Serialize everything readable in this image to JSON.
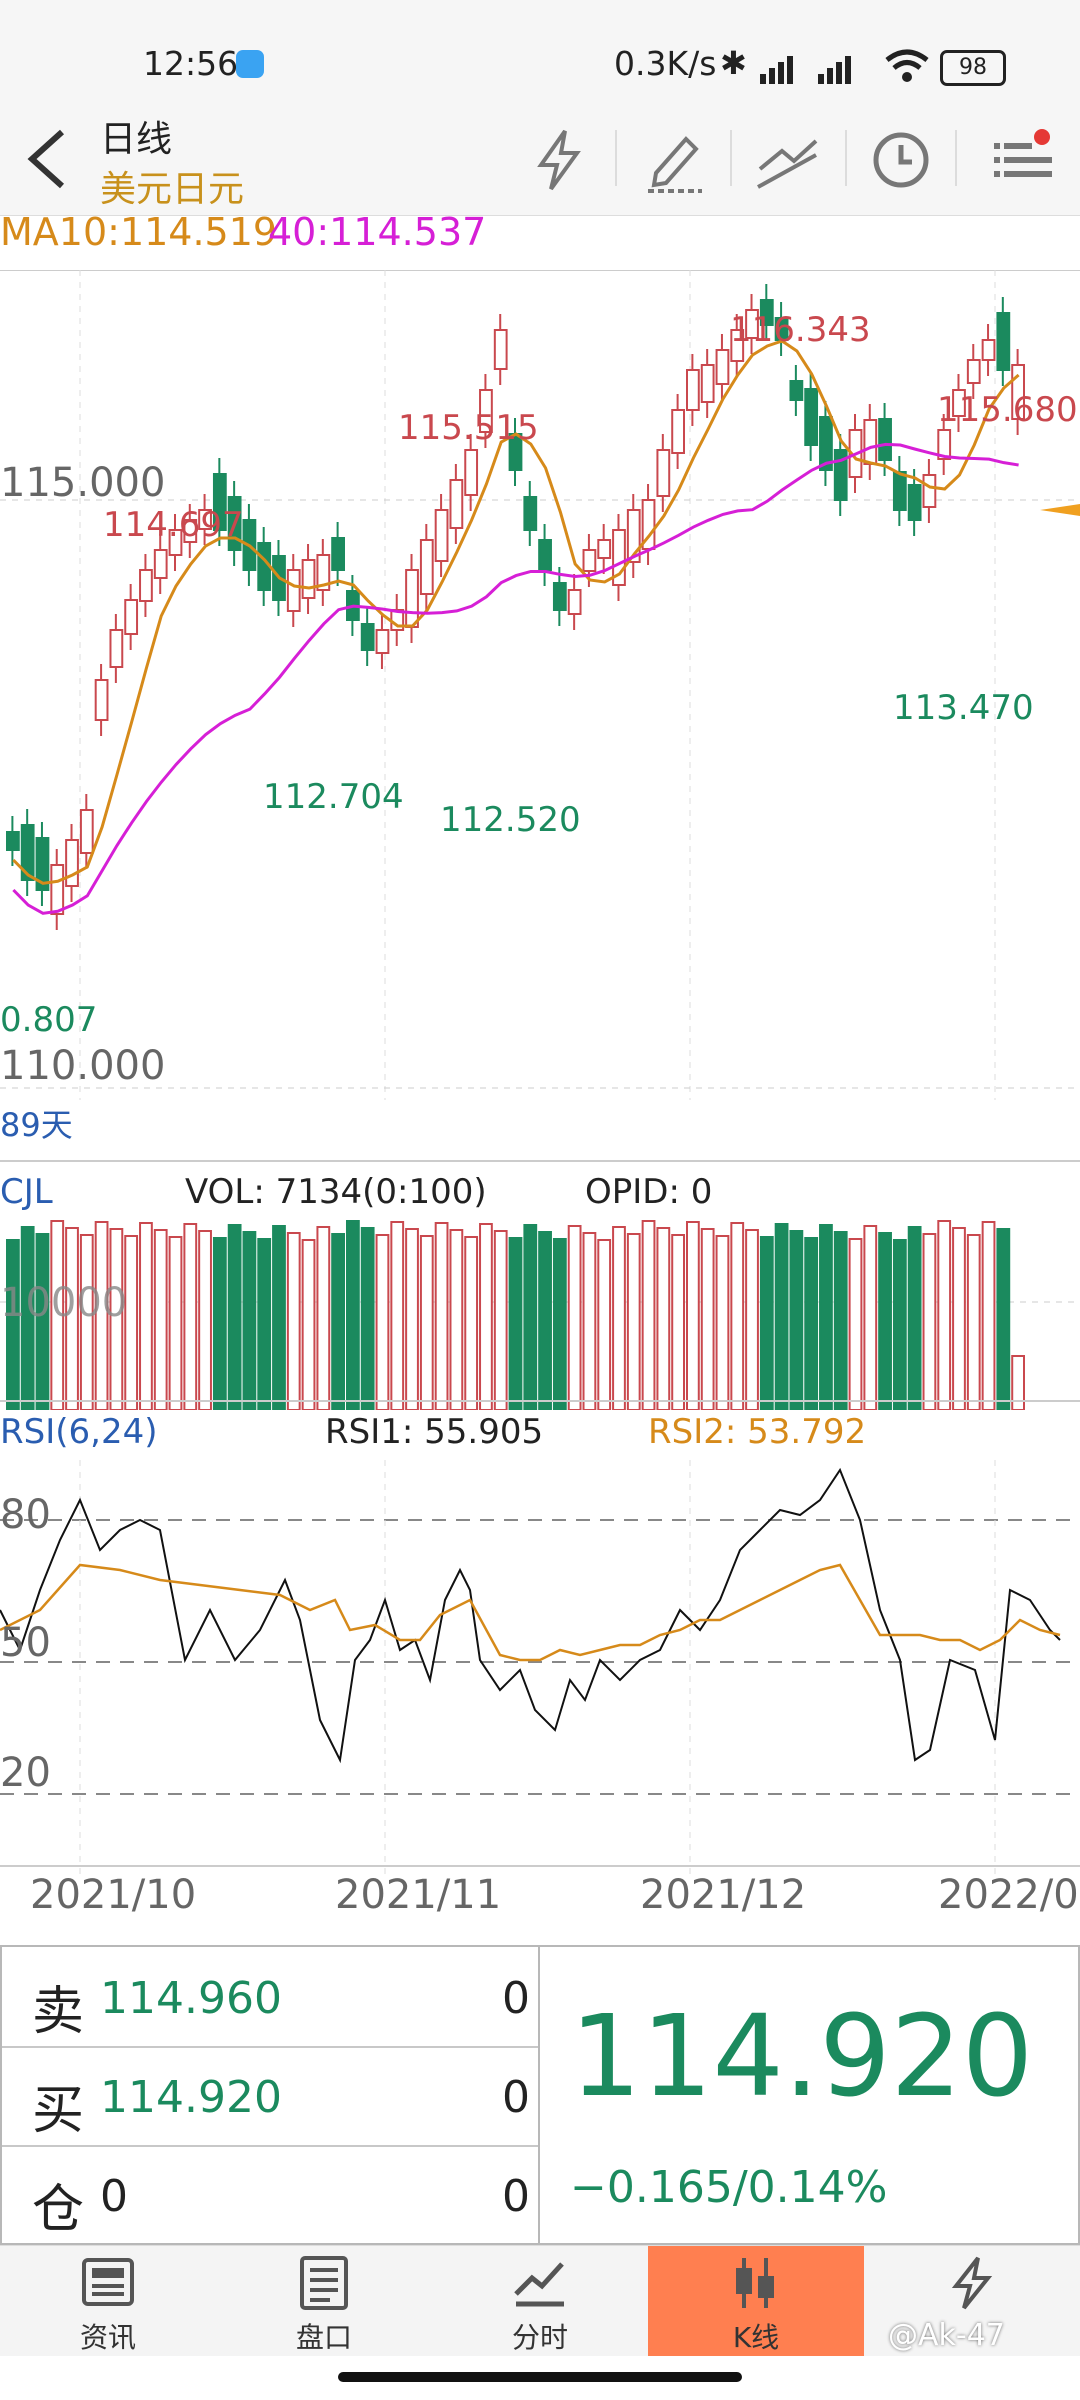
{
  "status_bar": {
    "time": "12:56",
    "net_speed": "0.3K/s",
    "battery": "98"
  },
  "header": {
    "title": "日线",
    "subtitle": "美元日元",
    "tools": [
      "flash-icon",
      "pen-icon",
      "trend-icon",
      "clock-icon",
      "menu-icon"
    ]
  },
  "ma_line": {
    "ma10": "MA10:114.519",
    "ma40": "40:114.537"
  },
  "price_chart": {
    "axis_top": "115.000",
    "axis_bottom": "110.000",
    "period_label": "89天",
    "annotations": [
      {
        "text": "114.697",
        "kind": "high"
      },
      {
        "text": "115.515",
        "kind": "high"
      },
      {
        "text": "116.343",
        "kind": "high"
      },
      {
        "text": "115.680",
        "kind": "high"
      },
      {
        "text": "112.704",
        "kind": "low"
      },
      {
        "text": "112.520",
        "kind": "low"
      },
      {
        "text": "113.470",
        "kind": "low"
      },
      {
        "text": "0.807",
        "kind": "low"
      }
    ]
  },
  "volume": {
    "name": "CJL",
    "vol_text": "VOL: 7134(0:100)",
    "opid_text": "OPID: 0",
    "axis_label": "10000"
  },
  "rsi": {
    "name": "RSI(6,24)",
    "rsi1_text": "RSI1: 55.905",
    "rsi2_text": "RSI2: 53.792",
    "levels": [
      "80",
      "50",
      "20"
    ]
  },
  "x_axis": {
    "dates": [
      "2021/10",
      "2021/11",
      "2021/12",
      "2022/0"
    ]
  },
  "order_book": {
    "sell_label": "卖",
    "sell_price": "114.960",
    "sell_qty": "0",
    "buy_label": "买",
    "buy_price": "114.920",
    "buy_qty": "0",
    "pos_label": "仓",
    "pos_value": "0",
    "pos_qty": "0",
    "last_price": "114.920",
    "change": "−0.165/0.14%"
  },
  "nav": {
    "items": [
      {
        "label": "资讯",
        "icon": "news-icon"
      },
      {
        "label": "盘口",
        "icon": "orderbook-icon"
      },
      {
        "label": "分时",
        "icon": "timeshare-icon"
      },
      {
        "label": "K线",
        "icon": "candlestick-icon"
      },
      {
        "label": "",
        "icon": "flash-icon"
      }
    ]
  },
  "watermark": "@Ak-47",
  "colors": {
    "up": "#c9484e",
    "down": "#1b8a5e",
    "ma10": "#d68a1a",
    "ma40": "#d61fd6",
    "nav_active": "#ff7f50"
  }
}
